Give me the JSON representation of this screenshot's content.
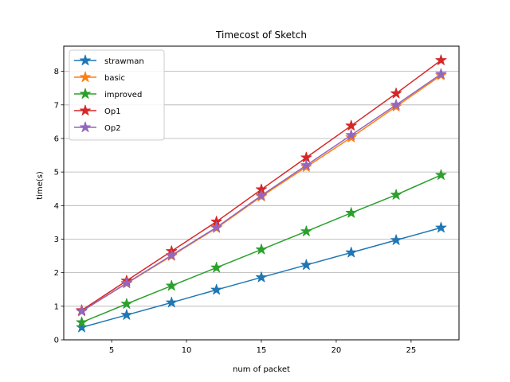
{
  "chart_data": {
    "type": "line",
    "title": "Timecost of Sketch",
    "xlabel": "num of packet",
    "ylabel": "time(s)",
    "xlim": [
      1.8,
      28.2
    ],
    "ylim": [
      0,
      8.75
    ],
    "xticks": [
      5,
      10,
      15,
      20,
      25
    ],
    "yticks": [
      0,
      1,
      2,
      3,
      4,
      5,
      6,
      7,
      8
    ],
    "grid": "horizontal",
    "legend_position": "top-left",
    "x": [
      3,
      6,
      9,
      12,
      15,
      18,
      21,
      24,
      27
    ],
    "marker": "star",
    "series": [
      {
        "name": "strawman",
        "color": "#1f77b4",
        "values": [
          0.37,
          0.74,
          1.11,
          1.49,
          1.86,
          2.23,
          2.6,
          2.97,
          3.34
        ]
      },
      {
        "name": "basic",
        "color": "#ff7f0e",
        "values": [
          0.85,
          1.68,
          2.5,
          3.33,
          4.27,
          5.15,
          6.03,
          6.95,
          7.88
        ]
      },
      {
        "name": "improved",
        "color": "#2ca02c",
        "values": [
          0.52,
          1.07,
          1.61,
          2.15,
          2.69,
          3.23,
          3.78,
          4.32,
          4.91
        ]
      },
      {
        "name": "Op1",
        "color": "#d62728",
        "values": [
          0.88,
          1.76,
          2.64,
          3.52,
          4.48,
          5.43,
          6.38,
          7.34,
          8.33
        ]
      },
      {
        "name": "Op2",
        "color": "#9467bd",
        "values": [
          0.85,
          1.69,
          2.52,
          3.35,
          4.3,
          5.2,
          6.1,
          7.0,
          7.92
        ]
      }
    ]
  }
}
